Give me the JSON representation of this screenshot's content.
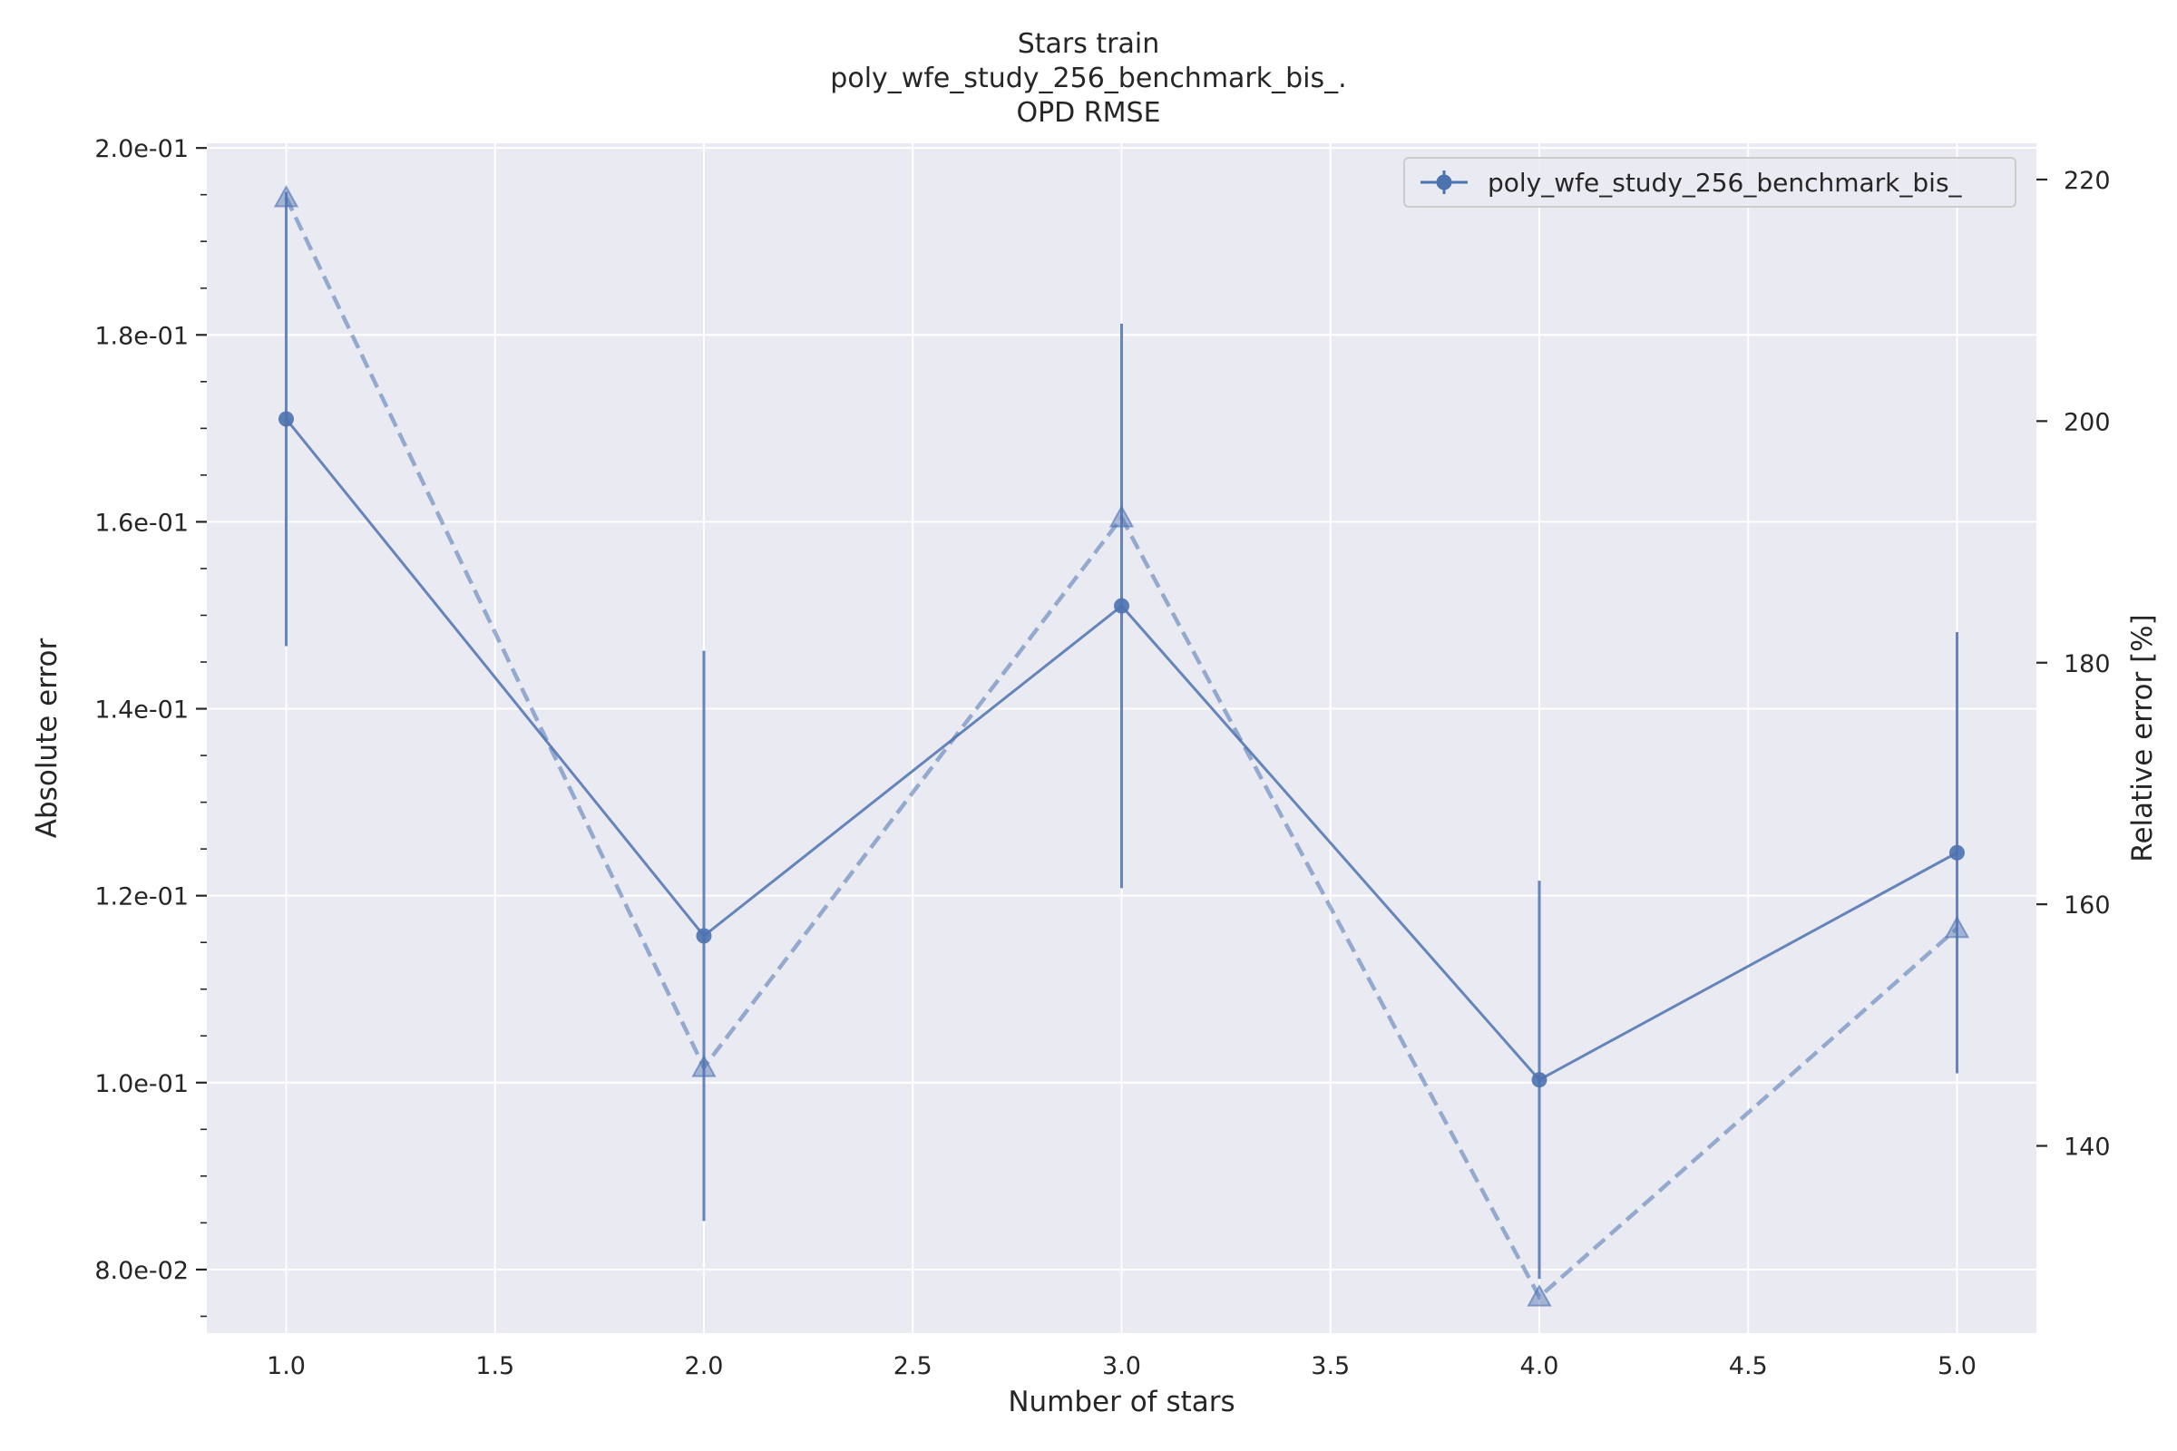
{
  "chart_data": {
    "type": "line",
    "title": [
      "Stars train",
      "poly_wfe_study_256_benchmark_bis_.",
      "OPD RMSE"
    ],
    "xlabel": "Number of stars",
    "ylabel": "Absolute error",
    "y2label": "Relative error [%]",
    "x": [
      1.0,
      2.0,
      3.0,
      4.0,
      5.0
    ],
    "xlim": [
      0.81,
      5.19
    ],
    "ylim": [
      0.0732,
      0.2005
    ],
    "y2lim": [
      124.5,
      223
    ],
    "xticks": [
      "1.0",
      "1.5",
      "2.0",
      "2.5",
      "3.0",
      "3.5",
      "4.0",
      "4.5",
      "5.0"
    ],
    "yticks": [
      "8.0e-02",
      "1.0e-01",
      "1.2e-01",
      "1.4e-01",
      "1.6e-01",
      "1.8e-01",
      "2.0e-01"
    ],
    "y2ticks": [
      "140",
      "160",
      "180",
      "200",
      "220"
    ],
    "grid": true,
    "legend": {
      "position": "top-right",
      "entries": [
        "poly_wfe_study_256_benchmark_bis_"
      ]
    },
    "series": [
      {
        "name": "poly_wfe_study_256_benchmark_bis_",
        "axis": "left",
        "style": "solid",
        "marker": "circle",
        "values": [
          0.171,
          0.1157,
          0.151,
          0.1003,
          0.1246
        ],
        "error": [
          0.0243,
          0.0305,
          0.0302,
          0.0213,
          0.0236
        ]
      },
      {
        "axis": "right",
        "style": "dashed",
        "marker": "triangle",
        "values": [
          218.5,
          146.5,
          192.0,
          127.5,
          158.0
        ]
      }
    ]
  },
  "colors": {
    "line": "#4c72b0",
    "plot_bg": "#eaeaf2",
    "grid": "#ffffff"
  }
}
